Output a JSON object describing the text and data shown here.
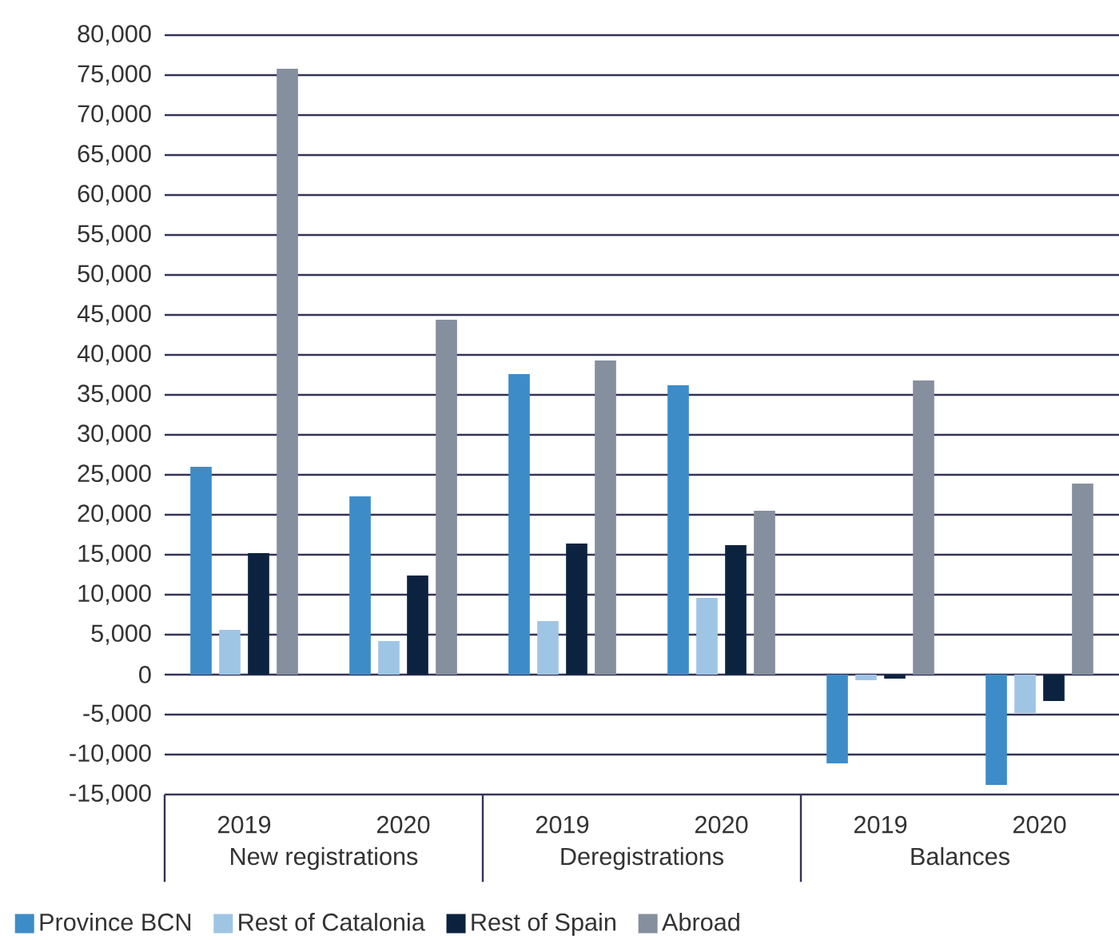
{
  "chart_data": {
    "type": "bar",
    "categories": [
      "2019",
      "2020",
      "2019",
      "2020",
      "2019",
      "2020"
    ],
    "annotations": [
      "New registrations",
      "Deregistrations",
      "Balances"
    ],
    "series": [
      {
        "name": "Province BCN",
        "color": "#3d8cc8",
        "values": [
          26000,
          22300,
          37600,
          36200,
          -11100,
          -13800
        ]
      },
      {
        "name": "Rest of Catalonia",
        "color": "#9fc5e5",
        "values": [
          5600,
          4200,
          6700,
          9600,
          -700,
          -4800
        ]
      },
      {
        "name": "Rest of Spain",
        "color": "#0c2340",
        "values": [
          15200,
          12400,
          16400,
          16200,
          -500,
          -3300
        ]
      },
      {
        "name": "Abroad",
        "color": "#858f9e",
        "values": [
          75800,
          44400,
          39300,
          20500,
          36800,
          23900
        ]
      }
    ],
    "ylim": [
      -15000,
      80000
    ],
    "yticks": [
      {
        "value": -15000,
        "label": "-15,000"
      },
      {
        "value": -10000,
        "label": "-10,000"
      },
      {
        "value": -5000,
        "label": "-5,000"
      },
      0,
      {
        "value": 5000,
        "label": "5,000"
      },
      {
        "value": 10000,
        "label": "10,000"
      },
      {
        "value": 15000,
        "label": "15,000"
      },
      {
        "value": 20000,
        "label": "20,000"
      },
      {
        "value": 25000,
        "label": "25,000"
      },
      {
        "value": 30000,
        "label": "30,000"
      },
      {
        "value": 35000,
        "label": "35,000"
      },
      {
        "value": 40000,
        "label": "40,000"
      },
      {
        "value": 45000,
        "label": "45,000"
      },
      {
        "value": 50000,
        "label": "50,000"
      },
      {
        "value": 55000,
        "label": "55,000"
      },
      {
        "value": 60000,
        "label": "60,000"
      },
      {
        "value": 65000,
        "label": "65,000"
      },
      {
        "value": 70000,
        "label": "70,000"
      },
      {
        "value": 75000,
        "label": "75,000"
      },
      {
        "value": 80000,
        "label": "80,000"
      }
    ],
    "grid": "y",
    "legend": "bottom"
  }
}
